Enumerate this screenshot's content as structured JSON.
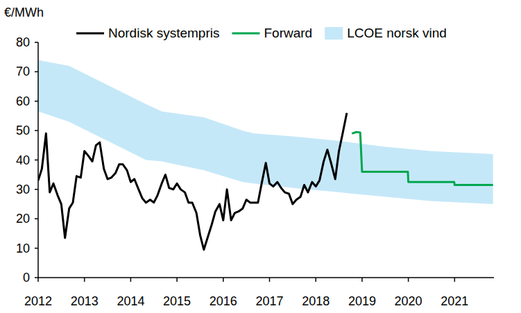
{
  "chart_data": {
    "type": "line",
    "y_label": "€/MWh",
    "xlim": [
      2012,
      2021.85
    ],
    "xticks": [
      2012,
      2013,
      2014,
      2015,
      2016,
      2017,
      2018,
      2019,
      2020,
      2021
    ],
    "ylim": [
      0,
      80
    ],
    "yticks": [
      0,
      10,
      20,
      30,
      40,
      50,
      60,
      70,
      80
    ],
    "grid": false,
    "legend": "top",
    "series": [
      {
        "name": "Nordisk systempris",
        "type": "line",
        "color": "#000000",
        "x": [
          2012.0,
          2012.08,
          2012.17,
          2012.25,
          2012.33,
          2012.42,
          2012.5,
          2012.58,
          2012.67,
          2012.75,
          2012.83,
          2012.92,
          2013.0,
          2013.08,
          2013.17,
          2013.25,
          2013.33,
          2013.42,
          2013.5,
          2013.58,
          2013.67,
          2013.75,
          2013.83,
          2013.92,
          2014.0,
          2014.08,
          2014.17,
          2014.25,
          2014.33,
          2014.42,
          2014.5,
          2014.58,
          2014.67,
          2014.75,
          2014.83,
          2014.92,
          2015.0,
          2015.08,
          2015.17,
          2015.25,
          2015.33,
          2015.42,
          2015.5,
          2015.58,
          2015.67,
          2015.75,
          2015.83,
          2015.92,
          2016.0,
          2016.08,
          2016.17,
          2016.25,
          2016.33,
          2016.42,
          2016.5,
          2016.58,
          2016.67,
          2016.75,
          2016.83,
          2016.92,
          2017.0,
          2017.08,
          2017.17,
          2017.25,
          2017.33,
          2017.42,
          2017.5,
          2017.58,
          2017.67,
          2017.75,
          2017.83,
          2017.92,
          2018.0,
          2018.08,
          2018.17,
          2018.25,
          2018.33,
          2018.42,
          2018.5,
          2018.58,
          2018.67
        ],
        "values": [
          33,
          37,
          49,
          29,
          32,
          28,
          25,
          13.5,
          23.5,
          25.5,
          34.5,
          34,
          43,
          41.5,
          39.5,
          45,
          46,
          37,
          33.5,
          34,
          35.5,
          38.5,
          38.5,
          36.5,
          32.5,
          33.5,
          30,
          27,
          25.5,
          26.5,
          25.5,
          28,
          32,
          35,
          30.5,
          30,
          32,
          30,
          29,
          25.5,
          25.5,
          22,
          14.5,
          9.5,
          14,
          18,
          22.5,
          25,
          19.5,
          30,
          19.5,
          22,
          22.5,
          23.5,
          26.5,
          25.5,
          25.5,
          25.5,
          32,
          39,
          32,
          31,
          32.5,
          30.5,
          29,
          28.5,
          25,
          26.5,
          27.5,
          31.5,
          29,
          32.5,
          31,
          33,
          39.5,
          43.5,
          39,
          33.5,
          43,
          49,
          56
        ]
      },
      {
        "name": "Forward",
        "type": "line",
        "color": "#00a650",
        "x": [
          2018.78,
          2018.88,
          2018.96,
          2019.0,
          2019.99,
          2020.0,
          2020.99,
          2021.0,
          2021.83
        ],
        "values": [
          49,
          49.5,
          49.3,
          36,
          36,
          32.5,
          32.5,
          31.5,
          31.5
        ]
      },
      {
        "name": "LCOE norsk vind",
        "type": "area",
        "color": "#c5e8f8",
        "x": [
          2012.0,
          2012.67,
          2014.33,
          2014.67,
          2015.58,
          2016.42,
          2016.67,
          2017.5,
          2018.5,
          2019.5,
          2020.5,
          2021.83
        ],
        "low": [
          56.5,
          53,
          40,
          39.5,
          36.5,
          32.5,
          32,
          30.5,
          29,
          27.5,
          26,
          25
        ],
        "high": [
          74,
          72,
          59,
          56.5,
          54.5,
          50,
          49,
          48,
          46.5,
          44.5,
          43,
          42
        ]
      }
    ]
  }
}
